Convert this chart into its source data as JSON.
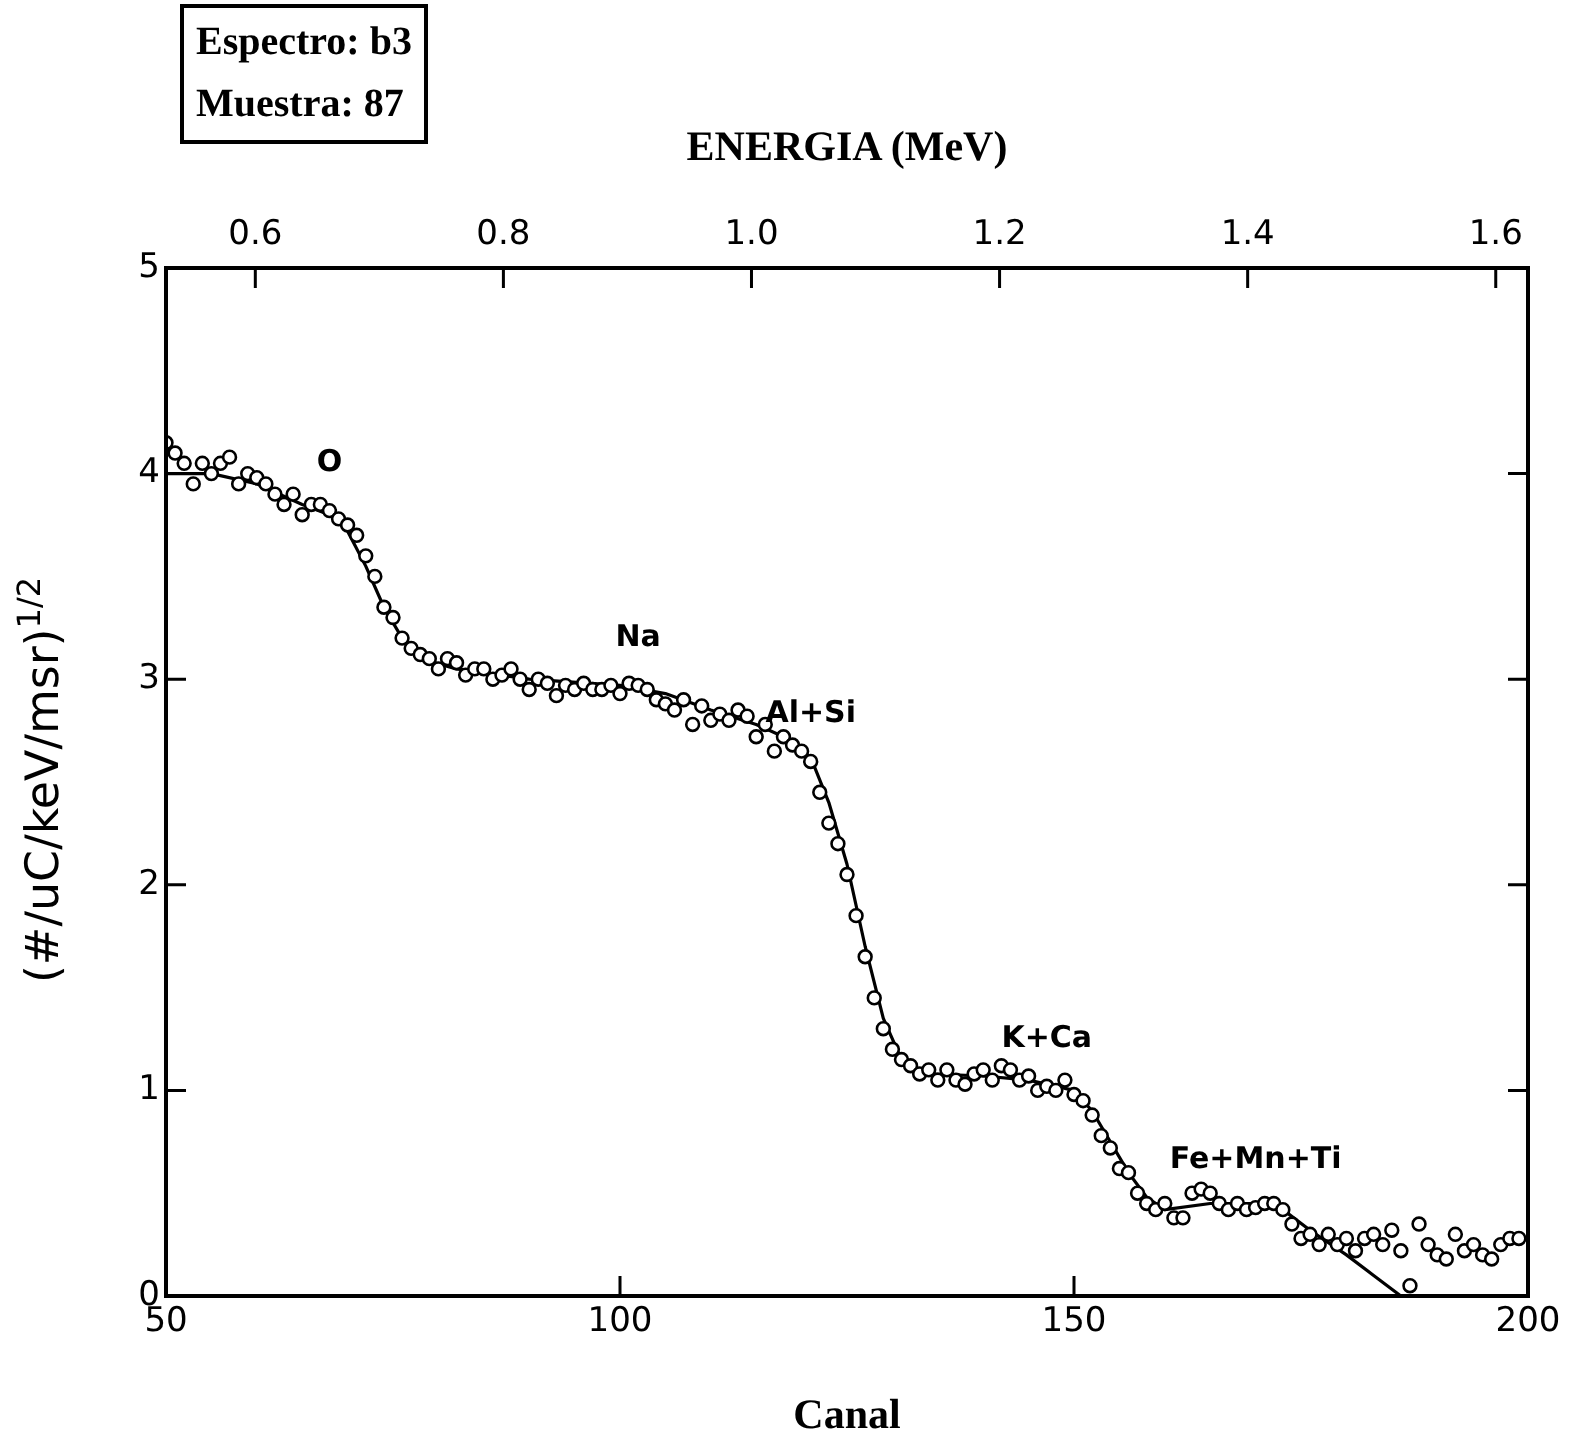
{
  "chart_data": {
    "type": "scatter",
    "xlabel": "Canal",
    "x2label": "ENERGIA (MeV)",
    "ylabel": "(#/uC/keV/msr)$^{1/2}$",
    "xlim": [
      50,
      200
    ],
    "xticks": [
      50,
      100,
      150,
      200
    ],
    "ylim": [
      0,
      5
    ],
    "yticks": [
      0,
      1,
      2,
      3,
      4,
      5
    ],
    "x2lim": [
      0.528,
      1.626
    ],
    "x2ticks": [
      0.6,
      0.8,
      {
        "value": 1.0,
        "label": "1.0"
      },
      1.2,
      1.4,
      1.6
    ],
    "series": [
      {
        "color": "#000000",
        "marker": "circle",
        "x": [
          50,
          51,
          52,
          53,
          54,
          55,
          56,
          57,
          58,
          59,
          60,
          61,
          62,
          63,
          64,
          65,
          66,
          67,
          68,
          69,
          70,
          71,
          72,
          73,
          74,
          75,
          76,
          77,
          78,
          79,
          80,
          81,
          82,
          83,
          84,
          85,
          86,
          87,
          88,
          89,
          90,
          91,
          92,
          93,
          94,
          95,
          96,
          97,
          98,
          99,
          100,
          101,
          102,
          103,
          104,
          105,
          106,
          107,
          108,
          109,
          110,
          111,
          112,
          113,
          114,
          115,
          116,
          117,
          118,
          119,
          120,
          121,
          122,
          123,
          124,
          125,
          126,
          127,
          128,
          129,
          130,
          131,
          132,
          133,
          134,
          135,
          136,
          137,
          138,
          139,
          140,
          141,
          142,
          143,
          144,
          145,
          146,
          147,
          148,
          149,
          150,
          151,
          152,
          153,
          154,
          155,
          156,
          157,
          158,
          159,
          160,
          161,
          162,
          163,
          164,
          165,
          166,
          167,
          168,
          169,
          170,
          171,
          172,
          173,
          174,
          175,
          176,
          177,
          178,
          179,
          180,
          181,
          182,
          183,
          184,
          185,
          186,
          187,
          188,
          189,
          190,
          191,
          192,
          193,
          194,
          195,
          196,
          197,
          198,
          199
        ],
        "values": [
          4.15,
          4.1,
          4.05,
          3.95,
          4.05,
          4.0,
          4.05,
          4.08,
          3.95,
          4.0,
          3.98,
          3.95,
          3.9,
          3.85,
          3.9,
          3.8,
          3.85,
          3.85,
          3.82,
          3.78,
          3.75,
          3.7,
          3.6,
          3.5,
          3.35,
          3.3,
          3.2,
          3.15,
          3.12,
          3.1,
          3.05,
          3.1,
          3.08,
          3.02,
          3.05,
          3.05,
          3.0,
          3.02,
          3.05,
          3.0,
          2.95,
          3.0,
          2.98,
          2.92,
          2.97,
          2.95,
          2.98,
          2.95,
          2.95,
          2.97,
          2.93,
          2.98,
          2.97,
          2.95,
          2.9,
          2.88,
          2.85,
          2.9,
          2.78,
          2.87,
          2.8,
          2.83,
          2.8,
          2.85,
          2.82,
          2.72,
          2.78,
          2.65,
          2.72,
          2.68,
          2.65,
          2.6,
          2.45,
          2.3,
          2.2,
          2.05,
          1.85,
          1.65,
          1.45,
          1.3,
          1.2,
          1.15,
          1.12,
          1.08,
          1.1,
          1.05,
          1.1,
          1.05,
          1.03,
          1.08,
          1.1,
          1.05,
          1.12,
          1.1,
          1.05,
          1.07,
          1.0,
          1.02,
          1.0,
          1.05,
          0.98,
          0.95,
          0.88,
          0.78,
          0.72,
          0.62,
          0.6,
          0.5,
          0.45,
          0.42,
          0.45,
          0.38,
          0.38,
          0.5,
          0.52,
          0.5,
          0.45,
          0.42,
          0.45,
          0.42,
          0.43,
          0.45,
          0.45,
          0.42,
          0.35,
          0.28,
          0.3,
          0.25,
          0.3,
          0.25,
          0.28,
          0.22,
          0.28,
          0.3,
          0.25,
          0.32,
          0.22,
          0.05,
          0.35,
          0.25,
          0.2,
          0.18,
          0.3,
          0.22,
          0.25,
          0.2,
          0.18,
          0.25,
          0.28,
          0.28
        ]
      },
      {
        "type": "line",
        "color": "#000000",
        "marker": "none",
        "x": [
          50,
          55,
          60,
          65,
          68,
          70,
          72,
          74,
          76,
          78,
          82,
          90,
          100,
          105,
          110,
          115,
          118,
          121,
          123,
          125,
          127,
          129,
          131,
          134,
          140,
          145,
          150,
          152,
          154,
          156,
          158,
          160,
          165,
          170,
          173,
          176,
          180,
          183,
          186
        ],
        "values": [
          4.0,
          4.0,
          3.95,
          3.85,
          3.8,
          3.72,
          3.55,
          3.35,
          3.2,
          3.1,
          3.05,
          3.0,
          2.97,
          2.93,
          2.85,
          2.78,
          2.72,
          2.62,
          2.4,
          2.1,
          1.7,
          1.35,
          1.15,
          1.08,
          1.07,
          1.05,
          1.0,
          0.9,
          0.75,
          0.6,
          0.48,
          0.42,
          0.45,
          0.45,
          0.42,
          0.32,
          0.2,
          0.1,
          0.0
        ]
      }
    ],
    "annotations": [
      "Espectro: b3",
      "Muestra: 87",
      {
        "text": "O",
        "x": 68,
        "y": 3.82
      },
      {
        "text": "Na",
        "x": 102,
        "y": 2.97
      },
      {
        "text": "Al+Si",
        "x": 121,
        "y": 2.6
      },
      {
        "text": "K+Ca",
        "x": 147,
        "y": 1.02
      },
      {
        "text": "Fe+Mn+Ti",
        "x": 170,
        "y": 0.43
      }
    ]
  }
}
